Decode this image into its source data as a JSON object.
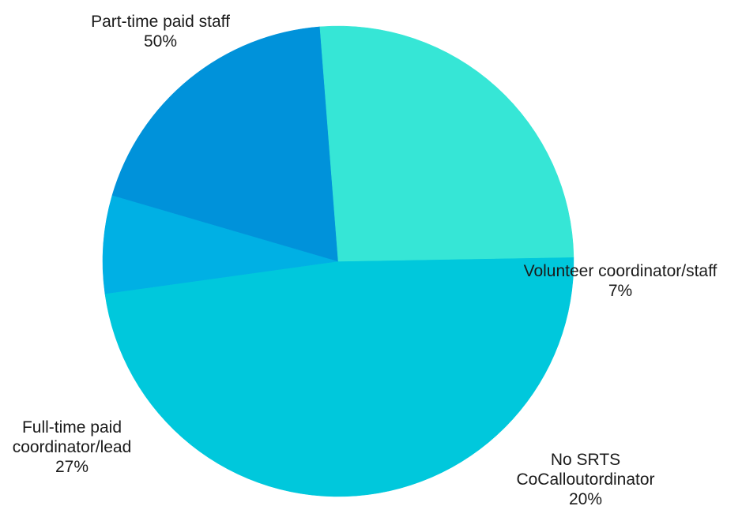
{
  "chart_data": {
    "type": "pie",
    "title": "",
    "slices": [
      {
        "label": "Part-time paid staff",
        "label_lines": [
          "Part-time paid staff"
        ],
        "value": 50,
        "value_label": "50%",
        "color": "#00C8DC"
      },
      {
        "label": "Volunteer coordinator/staff",
        "label_lines": [
          "Volunteer coordinator/staff"
        ],
        "value": 7,
        "value_label": "7%",
        "color": "#00B0E4"
      },
      {
        "label": "No SRTS CoCalloutordinator",
        "label_lines": [
          "No SRTS",
          "CoCalloutordinator"
        ],
        "value": 20,
        "value_label": "20%",
        "color": "#0092DA"
      },
      {
        "label": "Full-time paid coordinator/lead",
        "label_lines": [
          "Full-time paid",
          "coordinator/lead"
        ],
        "value": 27,
        "value_label": "27%",
        "color": "#36E6D6"
      }
    ]
  }
}
